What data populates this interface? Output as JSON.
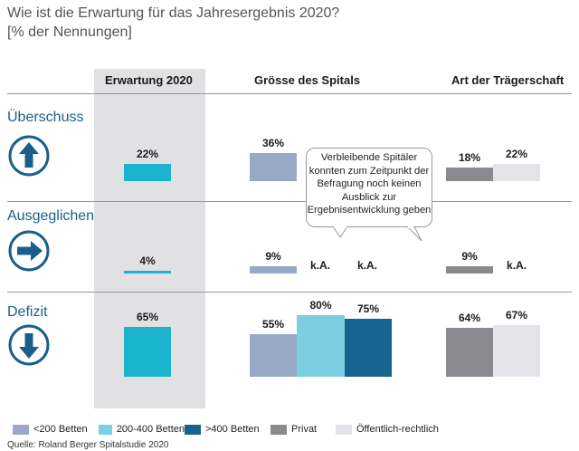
{
  "title": "Wie ist die Erwartung für das Jahresergebnis 2020?",
  "subtitle": "[% der Nennungen]",
  "columns": {
    "erwartung": "Erwartung 2020",
    "groesse": "Grösse des Spitals",
    "traeger": "Art der Trägerschaft"
  },
  "rows": [
    {
      "label": "Überschuss",
      "icon": "arrow-up-icon"
    },
    {
      "label": "Ausgeglichen",
      "icon": "arrow-right-icon"
    },
    {
      "label": "Defizit",
      "icon": "arrow-down-icon"
    }
  ],
  "na_label": "k.A.",
  "bubble_text": "Verbleibende Spitäler konnten zum Zeitpunkt der Befragung noch keinen Ausblick zur Ergebnisentwicklung geben",
  "legend": [
    {
      "label": "<200 Betten",
      "color": "#97a9c6"
    },
    {
      "label": "200-400 Betten",
      "color": "#7ccfe0"
    },
    {
      "label": ">400 Betten",
      "color": "#16648f"
    },
    {
      "label": "Privat",
      "color": "#8a8a8e"
    },
    {
      "label": "Öffentlich-rechtlich",
      "color": "#e3e3e8"
    }
  ],
  "source": "Quelle: Roland Berger Spitalstudie 2020",
  "colors": {
    "erwartung": "#1ab4cf",
    "accent_blue": "#1a5f8c"
  },
  "chart_data": {
    "type": "bar",
    "title": "Wie ist die Erwartung für das Jahresergebnis 2020?",
    "ylabel": "% der Nennungen",
    "ylim": [
      0,
      100
    ],
    "categories": [
      "Überschuss",
      "Ausgeglichen",
      "Defizit"
    ],
    "series": [
      {
        "name": "Erwartung 2020",
        "group": "Erwartung 2020",
        "values": [
          22,
          4,
          65
        ]
      },
      {
        "name": "<200 Betten",
        "group": "Grösse des Spitals",
        "values": [
          36,
          9,
          55
        ]
      },
      {
        "name": "200-400 Betten",
        "group": "Grösse des Spitals",
        "values": [
          null,
          null,
          80
        ]
      },
      {
        "name": ">400 Betten",
        "group": "Grösse des Spitals",
        "values": [
          null,
          null,
          75
        ]
      },
      {
        "name": "Privat",
        "group": "Art der Trägerschaft",
        "values": [
          18,
          9,
          64
        ]
      },
      {
        "name": "Öffentlich-rechtlich",
        "group": "Art der Trägerschaft",
        "values": [
          22,
          null,
          67
        ]
      }
    ],
    "missing_label": "k.A."
  }
}
